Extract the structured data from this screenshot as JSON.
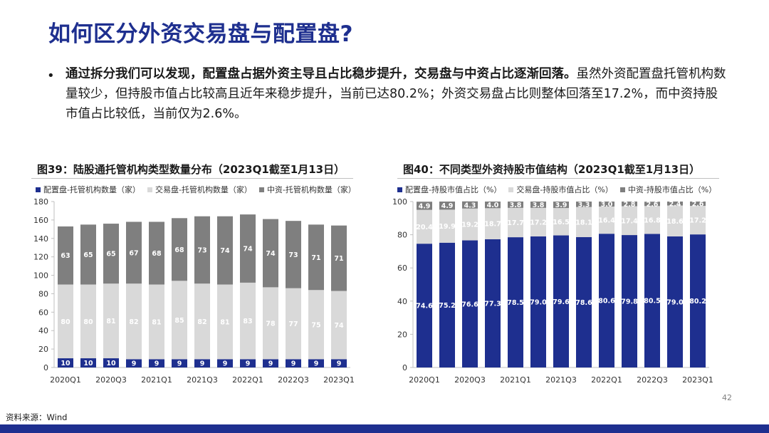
{
  "page": {
    "title": "如何区分外资交易盘与配置盘?",
    "bullet_bold": "通过拆分我们可以发现，配置盘占据外资主导且占比稳步提升，交易盘与中资占比逐渐回落。",
    "bullet_rest": "虽然外资配置盘托管机构数量较少，但持股市值占比较高且近年来稳步提升，当前已达80.2%；外资交易盘占比则整体回落至17.2%，而中资持股市值占比较低，当前仅为2.6%。",
    "source": "资料来源：Wind",
    "page_number": "42",
    "colors": {
      "title": "#1e2f8f",
      "series1": "#1e2f8f",
      "series2": "#d9d9d9",
      "series3": "#7f7f7f",
      "footer": "#1e2f8f"
    }
  },
  "chart_data": [
    {
      "type": "bar",
      "stacked": true,
      "title": "图39：陆股通托管机构类型数量分布（2023Q1截至1月13日）",
      "categories": [
        "2020Q1",
        "2020Q2",
        "2020Q3",
        "2020Q4",
        "2021Q1",
        "2021Q2",
        "2021Q3",
        "2021Q4",
        "2022Q1",
        "2022Q2",
        "2022Q3",
        "2022Q4",
        "2023Q1"
      ],
      "tick_labels": [
        "2020Q1",
        "2020Q3",
        "2021Q1",
        "2021Q3",
        "2022Q1",
        "2022Q3",
        "2023Q1"
      ],
      "series": [
        {
          "name": "配置盘-托管机构数量（家）",
          "color": "#1e2f8f",
          "label_color": "#ffffff",
          "values": [
            10,
            10,
            10,
            9,
            9,
            9,
            9,
            9,
            9,
            9,
            9,
            9,
            9
          ]
        },
        {
          "name": "交易盘-托管机构数量（家）",
          "color": "#d9d9d9",
          "label_color": "#ffffff",
          "values": [
            80,
            80,
            81,
            82,
            81,
            85,
            82,
            81,
            83,
            78,
            77,
            75,
            74
          ]
        },
        {
          "name": "中资-托管机构数量（家）",
          "color": "#7f7f7f",
          "label_color": "#ffffff",
          "values": [
            63,
            65,
            65,
            67,
            68,
            68,
            73,
            74,
            74,
            74,
            73,
            71,
            71
          ]
        }
      ],
      "ylim": [
        0,
        180
      ],
      "yticks": [
        0,
        20,
        40,
        60,
        80,
        100,
        120,
        140,
        160,
        180
      ],
      "grid": false,
      "legend": "top"
    },
    {
      "type": "bar",
      "stacked": true,
      "title": "图40：不同类型外资持股市值结构（2023Q1截至1月13日）",
      "categories": [
        "2020Q1",
        "2020Q2",
        "2020Q3",
        "2020Q4",
        "2021Q1",
        "2021Q2",
        "2021Q3",
        "2021Q4",
        "2022Q1",
        "2022Q2",
        "2022Q3",
        "2022Q4",
        "2023Q1"
      ],
      "tick_labels": [
        "2020Q1",
        "2020Q3",
        "2021Q1",
        "2021Q3",
        "2022Q1",
        "2022Q3",
        "2023Q1"
      ],
      "series": [
        {
          "name": "配置盘-持股市值占比（%）",
          "color": "#1e2f8f",
          "label_color": "#ffffff",
          "values": [
            74.6,
            75.2,
            76.6,
            77.3,
            78.5,
            79.0,
            79.6,
            78.6,
            80.6,
            79.8,
            80.5,
            79.0,
            80.2
          ]
        },
        {
          "name": "交易盘-持股市值占比（%）",
          "color": "#d9d9d9",
          "label_color": "#ffffff",
          "values": [
            20.4,
            19.9,
            19.2,
            18.7,
            17.7,
            17.2,
            16.5,
            18.1,
            16.4,
            17.4,
            16.8,
            18.6,
            17.2
          ]
        },
        {
          "name": "中资-持股市值占比（%）",
          "color": "#7f7f7f",
          "label_color": "#ffffff",
          "values": [
            4.9,
            4.9,
            4.3,
            4.0,
            3.8,
            3.8,
            3.9,
            3.3,
            3.0,
            2.8,
            2.6,
            2.4,
            2.6
          ]
        }
      ],
      "ylim": [
        0,
        100
      ],
      "yticks": [
        0,
        20,
        40,
        60,
        80,
        100
      ],
      "grid": false,
      "legend": "top"
    }
  ]
}
